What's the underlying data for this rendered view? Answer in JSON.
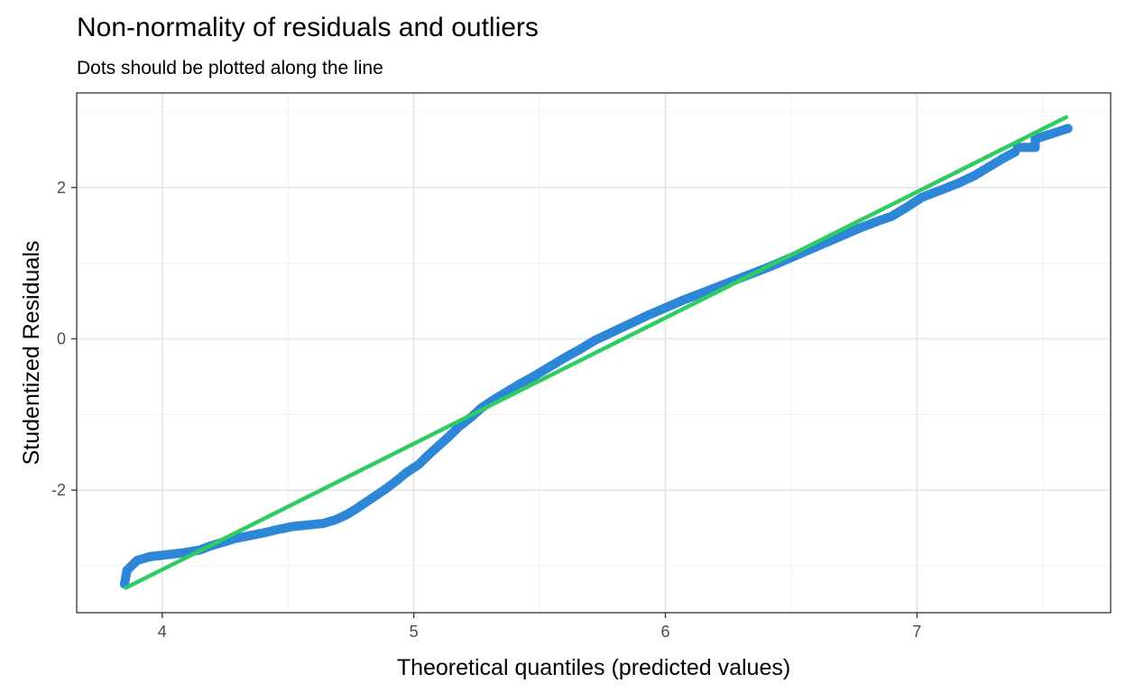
{
  "chart_data": {
    "type": "scatter",
    "title": "Non-normality of residuals and outliers",
    "subtitle": "Dots should be plotted along the line",
    "xlabel": "Theoretical quantiles (predicted values)",
    "ylabel": "Studentized Residuals",
    "xlim": [
      3.66,
      7.77
    ],
    "ylim": [
      -3.62,
      3.25
    ],
    "x_ticks": [
      4,
      5,
      6,
      7
    ],
    "x_tick_labels": [
      "4",
      "5",
      "6",
      "7"
    ],
    "y_ticks": [
      -2,
      0,
      2
    ],
    "y_tick_labels": [
      "-2",
      "0",
      "2"
    ],
    "grid": true,
    "legend": "none",
    "colors": {
      "points": "#2e86d6",
      "reference_line": "#2ecc63",
      "panel_border": "#333333",
      "grid_major": "#e5e5e5",
      "grid_minor": "#f0f0f0"
    },
    "series": [
      {
        "type": "scatter",
        "points": [
          [
            3.85,
            -3.24
          ],
          [
            3.86,
            -3.06
          ],
          [
            3.9,
            -2.93
          ],
          [
            3.95,
            -2.88
          ],
          [
            4.08,
            -2.83
          ],
          [
            4.15,
            -2.79
          ],
          [
            4.19,
            -2.74
          ],
          [
            4.24,
            -2.69
          ],
          [
            4.29,
            -2.64
          ],
          [
            4.35,
            -2.6
          ],
          [
            4.41,
            -2.56
          ],
          [
            4.46,
            -2.52
          ],
          [
            4.52,
            -2.48
          ],
          [
            4.58,
            -2.46
          ],
          [
            4.64,
            -2.44
          ],
          [
            4.69,
            -2.39
          ],
          [
            4.73,
            -2.33
          ],
          [
            4.77,
            -2.25
          ],
          [
            4.81,
            -2.16
          ],
          [
            4.85,
            -2.07
          ],
          [
            4.89,
            -1.98
          ],
          [
            4.93,
            -1.88
          ],
          [
            4.97,
            -1.77
          ],
          [
            5.02,
            -1.66
          ],
          [
            5.06,
            -1.53
          ],
          [
            5.1,
            -1.41
          ],
          [
            5.14,
            -1.29
          ],
          [
            5.18,
            -1.16
          ],
          [
            5.23,
            -1.03
          ],
          [
            5.27,
            -0.91
          ],
          [
            5.32,
            -0.8
          ],
          [
            5.37,
            -0.7
          ],
          [
            5.42,
            -0.6
          ],
          [
            5.48,
            -0.49
          ],
          [
            5.54,
            -0.37
          ],
          [
            5.6,
            -0.25
          ],
          [
            5.66,
            -0.14
          ],
          [
            5.72,
            -0.02
          ],
          [
            5.79,
            0.09
          ],
          [
            5.86,
            0.2
          ],
          [
            5.93,
            0.31
          ],
          [
            6.0,
            0.41
          ],
          [
            6.07,
            0.51
          ],
          [
            6.14,
            0.6
          ],
          [
            6.21,
            0.69
          ],
          [
            6.28,
            0.78
          ],
          [
            6.35,
            0.87
          ],
          [
            6.42,
            0.96
          ],
          [
            6.49,
            1.06
          ],
          [
            6.56,
            1.16
          ],
          [
            6.63,
            1.26
          ],
          [
            6.7,
            1.36
          ],
          [
            6.77,
            1.46
          ],
          [
            6.84,
            1.55
          ],
          [
            6.9,
            1.62
          ],
          [
            6.96,
            1.74
          ],
          [
            7.02,
            1.87
          ],
          [
            7.09,
            1.96
          ],
          [
            7.16,
            2.05
          ],
          [
            7.23,
            2.16
          ],
          [
            7.29,
            2.28
          ],
          [
            7.34,
            2.38
          ],
          [
            7.39,
            2.47
          ],
          [
            7.4,
            2.53
          ],
          [
            7.47,
            2.53
          ],
          [
            7.47,
            2.64
          ],
          [
            7.6,
            2.78
          ]
        ]
      },
      {
        "type": "line",
        "points": [
          [
            3.85,
            -3.3
          ],
          [
            7.6,
            2.94
          ]
        ]
      }
    ]
  }
}
